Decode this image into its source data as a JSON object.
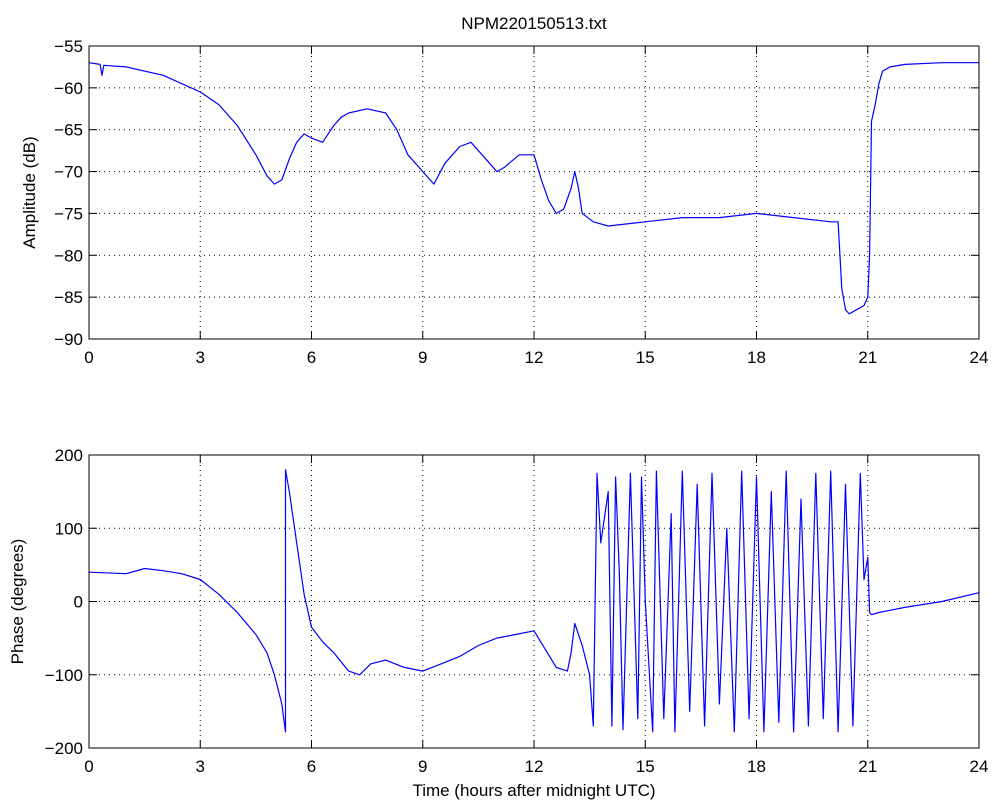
{
  "figure": {
    "title": "NPM220150513.txt",
    "line_color": "#0000ff",
    "grid_color": "#000000",
    "background": "#ffffff"
  },
  "chart_data": [
    {
      "type": "line",
      "title": "NPM220150513.txt",
      "xlabel": "",
      "ylabel": "Amplitude (dB)",
      "xlim": [
        0,
        24
      ],
      "ylim": [
        -90,
        -55
      ],
      "xticks": [
        0,
        3,
        6,
        9,
        12,
        15,
        18,
        21,
        24
      ],
      "yticks": [
        -90,
        -85,
        -80,
        -75,
        -70,
        -65,
        -60,
        -55
      ],
      "grid": true,
      "series": [
        {
          "color": "#0000ff",
          "x": [
            0,
            0.3,
            0.35,
            0.4,
            1,
            2,
            3,
            3.5,
            4,
            4.5,
            4.8,
            5,
            5.2,
            5.4,
            5.6,
            5.8,
            6,
            6.3,
            6.6,
            6.8,
            7,
            7.5,
            8,
            8.3,
            8.6,
            9,
            9.3,
            9.6,
            10,
            10.3,
            10.6,
            10.8,
            11,
            11.2,
            11.6,
            12,
            12.2,
            12.4,
            12.6,
            12.8,
            13,
            13.1,
            13.2,
            13.3,
            13.6,
            14,
            15,
            16,
            17,
            18,
            19,
            20,
            20.2,
            20.3,
            20.4,
            20.5,
            20.7,
            20.9,
            21.0,
            21.05,
            21.1,
            21.2,
            21.3,
            21.4,
            21.6,
            22,
            23,
            24
          ],
          "y": [
            -57,
            -57.2,
            -58.5,
            -57.3,
            -57.5,
            -58.5,
            -60.5,
            -62,
            -64.5,
            -68,
            -70.5,
            -71.5,
            -71,
            -68.5,
            -66.5,
            -65.5,
            -66,
            -66.5,
            -64.5,
            -63.5,
            -63,
            -62.5,
            -63,
            -65,
            -68,
            -70,
            -71.5,
            -69,
            -67,
            -66.5,
            -68,
            -69,
            -70,
            -69.5,
            -68,
            -68,
            -71,
            -73.5,
            -75,
            -74.5,
            -72,
            -70,
            -72,
            -75,
            -76,
            -76.5,
            -76,
            -75.5,
            -75.5,
            -75,
            -75.5,
            -76,
            -76,
            -84,
            -86.5,
            -87,
            -86.5,
            -86,
            -85,
            -80,
            -64,
            -62,
            -59.5,
            -58,
            -57.5,
            -57.2,
            -57,
            -57
          ]
        }
      ]
    },
    {
      "type": "line",
      "title": "",
      "xlabel": "Time (hours after midnight UTC)",
      "ylabel": "Phase (degrees)",
      "xlim": [
        0,
        24
      ],
      "ylim": [
        -200,
        200
      ],
      "xticks": [
        0,
        3,
        6,
        9,
        12,
        15,
        18,
        21,
        24
      ],
      "yticks": [
        -200,
        -100,
        0,
        100,
        200
      ],
      "grid": true,
      "series": [
        {
          "color": "#0000ff",
          "x": [
            0,
            1,
            1.5,
            2,
            2.5,
            3,
            3.5,
            4,
            4.5,
            4.8,
            5,
            5.2,
            5.3,
            5.3,
            5.4,
            5.6,
            5.8,
            6,
            6.3,
            6.6,
            7,
            7.3,
            7.6,
            8,
            8.5,
            9,
            9.5,
            10,
            10.5,
            11,
            11.5,
            12,
            12.3,
            12.6,
            12.9,
            13.0,
            13.1,
            13.3,
            13.5,
            13.6,
            13.7,
            13.8,
            14.0,
            14.1,
            14.2,
            14.3,
            14.4,
            14.6,
            14.8,
            14.9,
            15.0,
            15.2,
            15.3,
            15.5,
            15.7,
            15.8,
            16.0,
            16.2,
            16.4,
            16.6,
            16.8,
            17.0,
            17.2,
            17.4,
            17.6,
            17.8,
            18.0,
            18.2,
            18.4,
            18.6,
            18.8,
            19.0,
            19.2,
            19.4,
            19.6,
            19.8,
            20.0,
            20.2,
            20.4,
            20.6,
            20.8,
            20.9,
            21.0,
            21.05,
            21.1,
            21.3,
            21.6,
            22,
            23,
            24
          ],
          "y": [
            40,
            38,
            45,
            42,
            38,
            30,
            10,
            -15,
            -45,
            -70,
            -100,
            -140,
            -178,
            180,
            150,
            80,
            10,
            -35,
            -55,
            -70,
            -95,
            -100,
            -85,
            -80,
            -90,
            -95,
            -85,
            -75,
            -60,
            -50,
            -45,
            -40,
            -65,
            -90,
            -95,
            -70,
            -30,
            -60,
            -100,
            -170,
            175,
            80,
            150,
            -170,
            170,
            40,
            -175,
            175,
            -160,
            170,
            0,
            -178,
            178,
            -160,
            120,
            -178,
            178,
            -150,
            160,
            -170,
            175,
            -140,
            100,
            -178,
            178,
            -160,
            170,
            -178,
            150,
            -165,
            178,
            -178,
            140,
            -170,
            175,
            -160,
            178,
            -178,
            160,
            -170,
            175,
            30,
            60,
            -15,
            -18,
            -15,
            -12,
            -8,
            0,
            12
          ]
        }
      ]
    }
  ]
}
